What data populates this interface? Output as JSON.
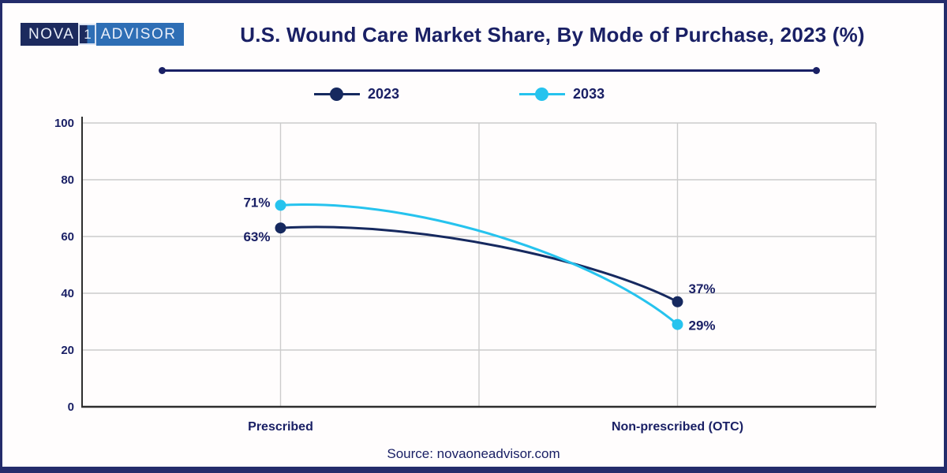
{
  "page": {
    "background": "#fffdfd",
    "frame_color": "#242c6b"
  },
  "header": {
    "logo": {
      "part1": "NOVA",
      "badge": "1",
      "part2": "ADVISOR",
      "left_bg": "#1c2a5e",
      "right_bg": "#2e6eb5"
    },
    "title": "U.S. Wound Care Market Share, By Mode of Purchase, 2023 (%)"
  },
  "chart_data": {
    "type": "line",
    "smooth": true,
    "marker": "circle",
    "categories": [
      "Prescribed",
      "Non-prescribed (OTC)"
    ],
    "series": [
      {
        "name": "2023",
        "color": "#16295f",
        "values": [
          63,
          37
        ],
        "point_labels": [
          "63%",
          "37%"
        ]
      },
      {
        "name": "2033",
        "color": "#26c3ee",
        "values": [
          71,
          29
        ],
        "point_labels": [
          "71%",
          "29%"
        ]
      }
    ],
    "ylim": [
      0,
      100
    ],
    "yticks": [
      0,
      20,
      40,
      60,
      80,
      100
    ],
    "grid": true,
    "grid_color": "#cccccc",
    "axis_color": "#2e2e2e",
    "text_color": "#1a2065",
    "legend_position": "top"
  },
  "footer": {
    "source": "Source: novaoneadvisor.com"
  }
}
